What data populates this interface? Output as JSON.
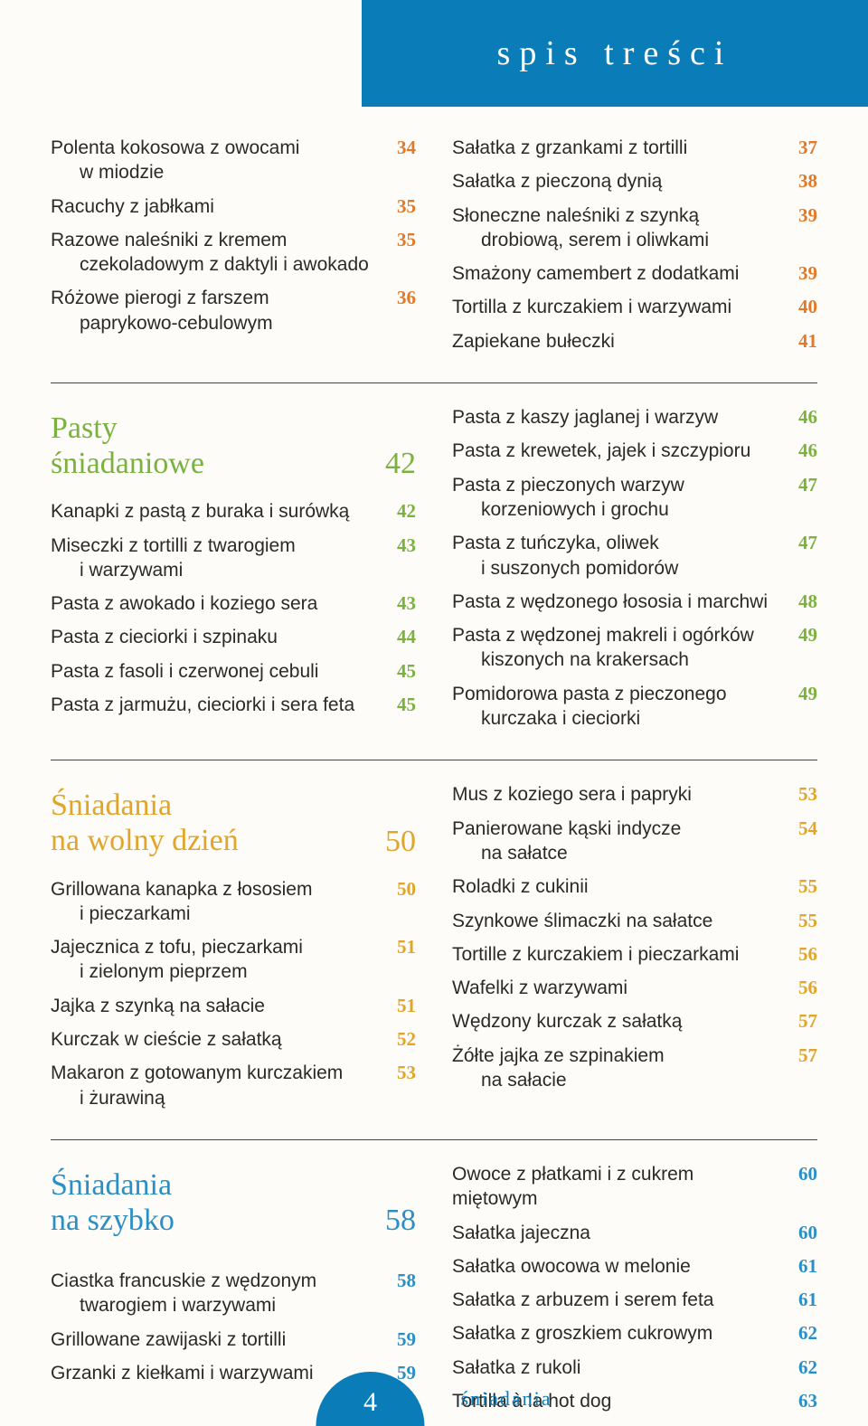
{
  "header": {
    "title": "spis treści"
  },
  "colors": {
    "banner": "#0a7db8",
    "orange": "#e07a2a",
    "green": "#7bb23f",
    "amber": "#e0a52a",
    "blue": "#2a8fc4"
  },
  "top_left": [
    {
      "t1": "Polenta kokosowa z owocami",
      "t2": "w miodzie",
      "p": "34"
    },
    {
      "t1": "Racuchy z jabłkami",
      "p": "35"
    },
    {
      "t1": "Razowe naleśniki z kremem",
      "t2": "czekoladowym z daktyli i awokado",
      "p": "35"
    },
    {
      "t1": "Różowe pierogi z farszem",
      "t2": "paprykowo-cebulowym",
      "p": "36"
    }
  ],
  "top_right": [
    {
      "t1": "Sałatka z grzankami z tortilli",
      "p": "37"
    },
    {
      "t1": "Sałatka z pieczoną dynią",
      "p": "38"
    },
    {
      "t1": "Słoneczne naleśniki z szynką",
      "t2": "drobiową, serem i oliwkami",
      "p": "39"
    },
    {
      "t1": "Smażony camembert z dodatkami",
      "p": "39"
    },
    {
      "t1": "Tortilla z kurczakiem i warzywami",
      "p": "40"
    },
    {
      "t1": "Zapiekane bułeczki",
      "p": "41"
    }
  ],
  "sec2": {
    "title_l1": "Pasty",
    "title_l2": "śniadaniowe",
    "page": "42",
    "left": [
      {
        "t1": "Kanapki z pastą z buraka i surówką",
        "p": "42"
      },
      {
        "t1": "Miseczki z tortilli z twarogiem",
        "t2": "i warzywami",
        "p": "43"
      },
      {
        "t1": "Pasta z awokado i koziego sera",
        "p": "43"
      },
      {
        "t1": "Pasta z cieciorki i szpinaku",
        "p": "44"
      },
      {
        "t1": "Pasta z fasoli i czerwonej cebuli",
        "p": "45"
      },
      {
        "t1": "Pasta z jarmużu, cieciorki i sera feta",
        "p": "45"
      }
    ],
    "right": [
      {
        "t1": "Pasta z kaszy jaglanej i warzyw",
        "p": "46"
      },
      {
        "t1": "Pasta z krewetek, jajek i szczypioru",
        "p": "46"
      },
      {
        "t1": "Pasta z pieczonych warzyw",
        "t2": "korzeniowych i grochu",
        "p": "47"
      },
      {
        "t1": "Pasta z tuńczyka, oliwek",
        "t2": "i suszonych pomidorów",
        "p": "47"
      },
      {
        "t1": "Pasta z wędzonego łososia i marchwi",
        "p": "48"
      },
      {
        "t1": "Pasta z wędzonej makreli i ogórków",
        "t2": "kiszonych na krakersach",
        "p": "49"
      },
      {
        "t1": "Pomidorowa pasta z pieczonego",
        "t2": "kurczaka i cieciorki",
        "p": "49"
      }
    ]
  },
  "sec3": {
    "title_l1": "Śniadania",
    "title_l2": "na wolny dzień",
    "page": "50",
    "left": [
      {
        "t1": "Grillowana kanapka z łososiem",
        "t2": "i pieczarkami",
        "p": "50"
      },
      {
        "t1": "Jajecznica z tofu, pieczarkami",
        "t2": "i zielonym pieprzem",
        "p": "51"
      },
      {
        "t1": "Jajka z szynką na sałacie",
        "p": "51"
      },
      {
        "t1": "Kurczak w cieście z sałatką",
        "p": "52"
      },
      {
        "t1": "Makaron z gotowanym kurczakiem",
        "t2": "i żurawiną",
        "p": "53"
      }
    ],
    "right": [
      {
        "t1": "Mus z koziego sera i papryki",
        "p": "53"
      },
      {
        "t1": "Panierowane kąski indycze",
        "t2": "na sałatce",
        "p": "54"
      },
      {
        "t1": "Roladki z cukinii",
        "p": "55"
      },
      {
        "t1": "Szynkowe ślimaczki na sałatce",
        "p": "55"
      },
      {
        "t1": "Tortille z kurczakiem i pieczarkami",
        "p": "56"
      },
      {
        "t1": "Wafelki z warzywami",
        "p": "56"
      },
      {
        "t1": "Wędzony kurczak z sałatką",
        "p": "57"
      },
      {
        "t1": "Żółte jajka ze szpinakiem",
        "t2": "na sałacie",
        "p": "57"
      }
    ]
  },
  "sec4": {
    "title_l1": "Śniadania",
    "title_l2": "na szybko",
    "page": "58",
    "left": [
      {
        "t1": "Ciastka francuskie z wędzonym",
        "t2": "twarogiem i warzywami",
        "p": "58"
      },
      {
        "t1": "Grillowane zawijaski z tortilli",
        "p": "59"
      },
      {
        "t1": "Grzanki z kiełkami i warzywami",
        "p": "59"
      }
    ],
    "right": [
      {
        "t1": "Owoce z płatkami i z cukrem miętowym",
        "p": "60"
      },
      {
        "t1": "Sałatka jajeczna",
        "p": "60"
      },
      {
        "t1": "Sałatka owocowa w melonie",
        "p": "61"
      },
      {
        "t1": "Sałatka z arbuzem i serem feta",
        "p": "61"
      },
      {
        "t1": "Sałatka z groszkiem cukrowym",
        "p": "62"
      },
      {
        "t1": "Sałatka z rukoli",
        "p": "62"
      },
      {
        "t1": "Tortilla à la hot dog",
        "p": "63"
      }
    ]
  },
  "footer": {
    "page": "4",
    "label": "śniadania"
  }
}
